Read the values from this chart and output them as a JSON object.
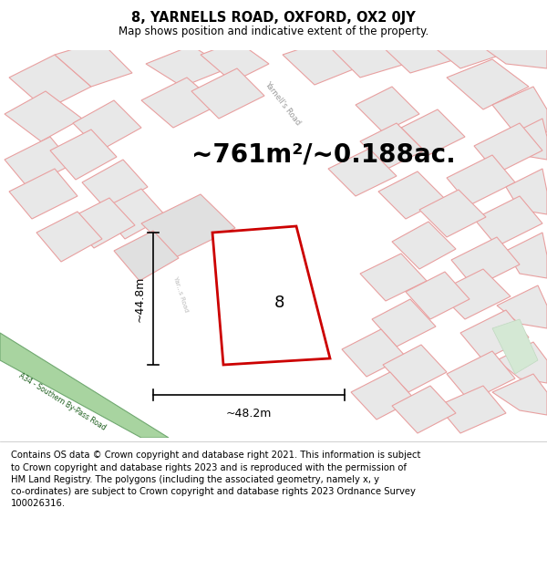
{
  "title": "8, YARNELLS ROAD, OXFORD, OX2 0JY",
  "subtitle": "Map shows position and indicative extent of the property.",
  "area_text": "~761m²/~0.188ac.",
  "dim_vertical": "~44.8m",
  "dim_horizontal": "~48.2m",
  "property_number": "8",
  "footer": "Contains OS data © Crown copyright and database right 2021. This information is subject to Crown copyright and database rights 2023 and is reproduced with the permission of HM Land Registry. The polygons (including the associated geometry, namely x, y co-ordinates) are subject to Crown copyright and database rights 2023 Ordnance Survey 100026316.",
  "map_bg": "#f2f2f2",
  "building_fill": "#e8e8e8",
  "building_edge": "#e8a0a0",
  "building_edge2": "#d4b0b0",
  "road_green_fill": "#a8d4a0",
  "road_green_edge": "#70a870",
  "road_green_text": "#1a5c1a",
  "property_edge": "#cc0000",
  "property_fill": "#ffffff",
  "dim_color": "#000000",
  "title_fontsize": 10.5,
  "subtitle_fontsize": 8.5,
  "area_fontsize": 20,
  "footer_fontsize": 7.2,
  "number_fontsize": 13,
  "dim_fontsize": 9,
  "road_label_fontsize": 5.5,
  "yarnells_fontsize": 6.0
}
